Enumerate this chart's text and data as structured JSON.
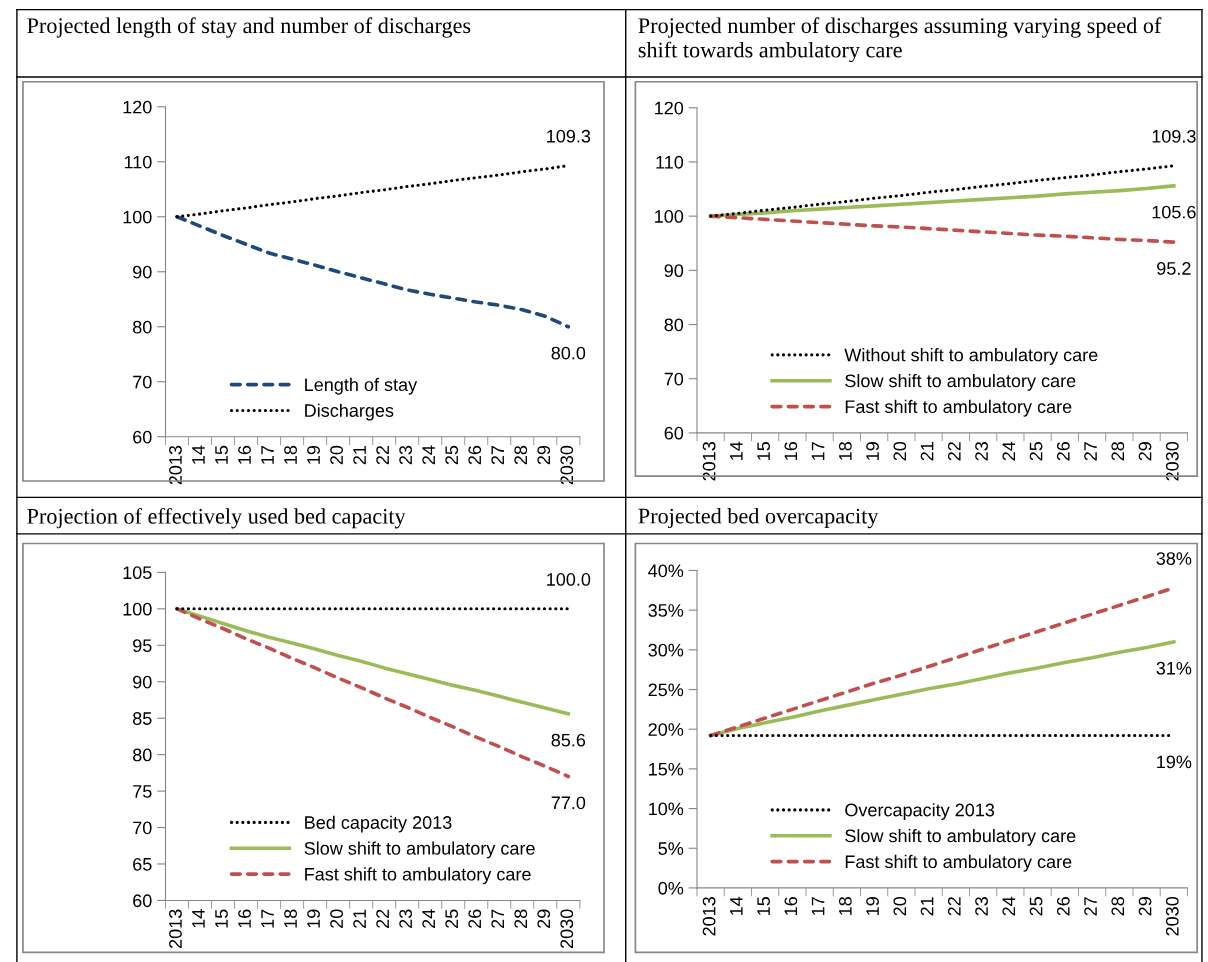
{
  "chart_data": [
    {
      "type": "line",
      "title": "Projected length of stay and number of discharges",
      "categories": [
        "2013",
        "14",
        "15",
        "16",
        "17",
        "18",
        "19",
        "20",
        "21",
        "22",
        "23",
        "24",
        "25",
        "26",
        "27",
        "28",
        "29",
        "2030"
      ],
      "ylim": [
        60,
        120
      ],
      "yticks": [
        60,
        70,
        80,
        90,
        100,
        110,
        120
      ],
      "grid": false,
      "legend": "bottom left",
      "marker": "none",
      "series": [
        {
          "name": "Length of stay",
          "color": "#1f497d",
          "line_style": "dashed",
          "values": [
            100,
            98.3,
            96.6,
            95.0,
            93.4,
            92.3,
            91.2,
            90.0,
            88.9,
            87.8,
            86.7,
            85.9,
            85.2,
            84.5,
            83.9,
            83.1,
            81.9,
            80.0
          ],
          "value_labels": [
            null,
            null,
            null,
            null,
            null,
            null,
            null,
            null,
            null,
            null,
            null,
            null,
            null,
            null,
            null,
            null,
            null,
            "80.0"
          ]
        },
        {
          "name": "Discharges",
          "color": "#000000",
          "line_style": "dotted",
          "values": [
            100,
            100.5,
            101.1,
            101.6,
            102.2,
            102.7,
            103.3,
            103.8,
            104.4,
            104.9,
            105.5,
            106.0,
            106.6,
            107.1,
            107.6,
            108.2,
            108.7,
            109.3
          ],
          "value_labels": [
            null,
            null,
            null,
            null,
            null,
            null,
            null,
            null,
            null,
            null,
            null,
            null,
            null,
            null,
            null,
            null,
            null,
            "109.3"
          ]
        }
      ]
    },
    {
      "type": "line",
      "title": "Projected number of discharges assuming varying speed of shift towards ambulatory care",
      "categories": [
        "2013",
        "14",
        "15",
        "16",
        "17",
        "18",
        "19",
        "20",
        "21",
        "22",
        "23",
        "24",
        "25",
        "26",
        "27",
        "28",
        "29",
        "2030"
      ],
      "ylim": [
        60,
        120
      ],
      "yticks": [
        60,
        70,
        80,
        90,
        100,
        110,
        120
      ],
      "grid": false,
      "legend": "bottom left",
      "marker": "none",
      "series": [
        {
          "name": "Without shift to ambulatory care",
          "color": "#000000",
          "line_style": "dotted",
          "values": [
            100,
            100.5,
            101.1,
            101.6,
            102.2,
            102.7,
            103.3,
            103.8,
            104.4,
            104.9,
            105.5,
            106.0,
            106.6,
            107.1,
            107.6,
            108.2,
            108.7,
            109.3
          ],
          "value_labels": [
            null,
            null,
            null,
            null,
            null,
            null,
            null,
            null,
            null,
            null,
            null,
            null,
            null,
            null,
            null,
            null,
            null,
            "109.3"
          ]
        },
        {
          "name": "Slow shift to ambulatory care",
          "color": "#9bbb59",
          "line_style": "solid",
          "values": [
            100,
            100.3,
            100.6,
            101.0,
            101.3,
            101.6,
            101.9,
            102.2,
            102.5,
            102.8,
            103.1,
            103.4,
            103.7,
            104.1,
            104.4,
            104.7,
            105.1,
            105.6
          ],
          "value_labels": [
            null,
            null,
            null,
            null,
            null,
            null,
            null,
            null,
            null,
            null,
            null,
            null,
            null,
            null,
            null,
            null,
            null,
            "105.6"
          ]
        },
        {
          "name": "Fast shift to ambulatory care",
          "color": "#c0504d",
          "line_style": "dashed",
          "values": [
            100,
            99.7,
            99.4,
            99.1,
            98.8,
            98.5,
            98.2,
            98.0,
            97.7,
            97.4,
            97.1,
            96.8,
            96.5,
            96.3,
            96.0,
            95.7,
            95.5,
            95.2
          ],
          "value_labels": [
            null,
            null,
            null,
            null,
            null,
            null,
            null,
            null,
            null,
            null,
            null,
            null,
            null,
            null,
            null,
            null,
            null,
            "95.2"
          ]
        }
      ]
    },
    {
      "type": "line",
      "title": "Projection of effectively used bed capacity",
      "categories": [
        "2013",
        "14",
        "15",
        "16",
        "17",
        "18",
        "19",
        "20",
        "21",
        "22",
        "23",
        "24",
        "25",
        "26",
        "27",
        "28",
        "29",
        "2030"
      ],
      "ylim": [
        60,
        105
      ],
      "yticks": [
        60,
        65,
        70,
        75,
        80,
        85,
        90,
        95,
        100,
        105
      ],
      "grid": false,
      "legend": "bottom left",
      "marker": "none",
      "series": [
        {
          "name": "Bed capacity 2013",
          "color": "#000000",
          "line_style": "dotted",
          "values": [
            100,
            100,
            100,
            100,
            100,
            100,
            100,
            100,
            100,
            100,
            100,
            100,
            100,
            100,
            100,
            100,
            100,
            100
          ],
          "value_labels": [
            null,
            null,
            null,
            null,
            null,
            null,
            null,
            null,
            null,
            null,
            null,
            null,
            null,
            null,
            null,
            null,
            null,
            "100.0"
          ]
        },
        {
          "name": "Slow shift to ambulatory care",
          "color": "#9bbb59",
          "line_style": "solid",
          "values": [
            100,
            99.0,
            98.0,
            97.0,
            96.1,
            95.3,
            94.5,
            93.6,
            92.8,
            91.9,
            91.1,
            90.3,
            89.5,
            88.8,
            88.0,
            87.2,
            86.4,
            85.6
          ],
          "value_labels": [
            null,
            null,
            null,
            null,
            null,
            null,
            null,
            null,
            null,
            null,
            null,
            null,
            null,
            null,
            null,
            null,
            null,
            "85.6"
          ]
        },
        {
          "name": "Fast shift to ambulatory care",
          "color": "#c0504d",
          "line_style": "dashed",
          "values": [
            100,
            98.6,
            97.3,
            95.9,
            94.6,
            93.2,
            91.9,
            90.5,
            89.2,
            87.8,
            86.5,
            85.1,
            83.8,
            82.4,
            81.1,
            79.7,
            78.4,
            77.0
          ],
          "value_labels": [
            null,
            null,
            null,
            null,
            null,
            null,
            null,
            null,
            null,
            null,
            null,
            null,
            null,
            null,
            null,
            null,
            null,
            "77.0"
          ]
        }
      ]
    },
    {
      "type": "line",
      "title": "Projected bed overcapacity",
      "categories": [
        "2013",
        "14",
        "15",
        "16",
        "17",
        "18",
        "19",
        "20",
        "21",
        "22",
        "23",
        "24",
        "25",
        "26",
        "27",
        "28",
        "29",
        "2030"
      ],
      "ylim": [
        0,
        40
      ],
      "yticks": [
        {
          "value": 0,
          "label": "0%"
        },
        {
          "value": 5,
          "label": "5%"
        },
        {
          "value": 10,
          "label": "10%"
        },
        {
          "value": 15,
          "label": "15%"
        },
        {
          "value": 20,
          "label": "20%"
        },
        {
          "value": 25,
          "label": "25%"
        },
        {
          "value": 30,
          "label": "30%"
        },
        {
          "value": 35,
          "label": "35%"
        },
        {
          "value": 40,
          "label": "40%"
        }
      ],
      "grid": false,
      "legend": "bottom left",
      "marker": "none",
      "series": [
        {
          "name": "Overcapacity 2013",
          "color": "#000000",
          "line_style": "dotted",
          "values": [
            19.2,
            19.2,
            19.2,
            19.2,
            19.2,
            19.2,
            19.2,
            19.2,
            19.2,
            19.2,
            19.2,
            19.2,
            19.2,
            19.2,
            19.2,
            19.2,
            19.2,
            19.2
          ],
          "value_labels": [
            null,
            null,
            null,
            null,
            null,
            null,
            null,
            null,
            null,
            null,
            null,
            null,
            null,
            null,
            null,
            null,
            null,
            "19%"
          ]
        },
        {
          "name": "Slow shift to ambulatory care",
          "color": "#9bbb59",
          "line_style": "solid",
          "values": [
            19.2,
            20.1,
            20.8,
            21.5,
            22.3,
            23.0,
            23.7,
            24.4,
            25.1,
            25.7,
            26.4,
            27.1,
            27.7,
            28.4,
            29.0,
            29.7,
            30.3,
            31.0
          ],
          "value_labels": [
            null,
            null,
            null,
            null,
            null,
            null,
            null,
            null,
            null,
            null,
            null,
            null,
            null,
            null,
            null,
            null,
            null,
            "31%"
          ]
        },
        {
          "name": "Fast shift to ambulatory care",
          "color": "#c0504d",
          "line_style": "dashed",
          "values": [
            19.2,
            20.3,
            21.4,
            22.5,
            23.6,
            24.7,
            25.8,
            26.8,
            27.9,
            29.0,
            30.1,
            31.2,
            32.3,
            33.4,
            34.5,
            35.6,
            36.7,
            37.8
          ],
          "value_labels": [
            null,
            null,
            null,
            null,
            null,
            null,
            null,
            null,
            null,
            null,
            null,
            null,
            null,
            null,
            null,
            null,
            null,
            "38%"
          ]
        }
      ]
    }
  ]
}
